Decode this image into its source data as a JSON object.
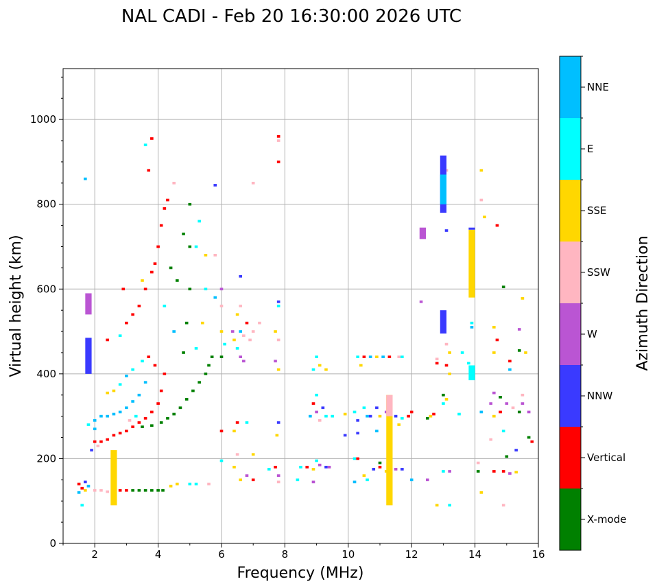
{
  "chart_data": {
    "type": "scatter",
    "title": "NAL CADI - Feb 20 16:30:00 2026 UTC",
    "xlabel": "Frequency (MHz)",
    "ylabel": "Virtual height (km)",
    "xlim": [
      1,
      16
    ],
    "ylim": [
      0,
      1120
    ],
    "xticks": [
      2,
      4,
      6,
      8,
      10,
      12,
      14,
      16
    ],
    "yticks": [
      0,
      200,
      400,
      600,
      800,
      1000
    ],
    "grid": true,
    "colorbar": {
      "label": "Azimuth Direction",
      "categories": [
        "X-mode",
        "Vertical",
        "NNW",
        "W",
        "SSW",
        "SSE",
        "E",
        "NNE"
      ],
      "colors": [
        "#008000",
        "#ff0000",
        "#3a3aff",
        "#ba55d3",
        "#ffb6c1",
        "#ffd700",
        "#00ffff",
        "#00bfff"
      ]
    },
    "points_columns": [
      "frequency_mhz",
      "height_km",
      "direction_index"
    ],
    "points": [
      [
        1.5,
        140,
        1
      ],
      [
        1.6,
        130,
        1
      ],
      [
        1.7,
        125,
        5
      ],
      [
        1.8,
        135,
        7
      ],
      [
        2.0,
        125,
        4
      ],
      [
        2.2,
        125,
        4
      ],
      [
        2.4,
        122,
        4
      ],
      [
        2.6,
        128,
        4
      ],
      [
        2.8,
        125,
        1
      ],
      [
        3.0,
        125,
        1
      ],
      [
        3.2,
        125,
        0
      ],
      [
        3.4,
        125,
        0
      ],
      [
        3.6,
        125,
        0
      ],
      [
        3.8,
        125,
        0
      ],
      [
        4.0,
        125,
        0
      ],
      [
        4.15,
        125,
        0
      ],
      [
        4.4,
        135,
        5
      ],
      [
        4.6,
        140,
        5
      ],
      [
        5.0,
        140,
        6
      ],
      [
        5.2,
        140,
        6
      ],
      [
        5.6,
        140,
        4
      ],
      [
        1.6,
        90,
        6
      ],
      [
        1.5,
        120,
        7
      ],
      [
        1.7,
        145,
        2
      ],
      [
        2.0,
        240,
        1
      ],
      [
        2.2,
        240,
        1
      ],
      [
        2.4,
        245,
        1
      ],
      [
        2.6,
        255,
        1
      ],
      [
        2.8,
        260,
        1
      ],
      [
        3.0,
        265,
        1
      ],
      [
        3.2,
        275,
        1
      ],
      [
        3.4,
        285,
        1
      ],
      [
        3.6,
        295,
        1
      ],
      [
        3.8,
        310,
        1
      ],
      [
        4.0,
        330,
        1
      ],
      [
        4.1,
        360,
        1
      ],
      [
        4.2,
        400,
        1
      ],
      [
        3.9,
        420,
        1
      ],
      [
        3.7,
        440,
        1
      ],
      [
        1.9,
        220,
        2
      ],
      [
        2.1,
        230,
        4
      ],
      [
        2.0,
        290,
        7
      ],
      [
        2.2,
        300,
        7
      ],
      [
        2.4,
        300,
        7
      ],
      [
        2.6,
        305,
        7
      ],
      [
        2.8,
        310,
        7
      ],
      [
        3.0,
        320,
        7
      ],
      [
        3.2,
        335,
        7
      ],
      [
        3.4,
        350,
        7
      ],
      [
        3.6,
        380,
        7
      ],
      [
        2.6,
        360,
        5
      ],
      [
        2.4,
        355,
        5
      ],
      [
        2.8,
        375,
        6
      ],
      [
        3.0,
        395,
        7
      ],
      [
        3.2,
        410,
        6
      ],
      [
        3.5,
        430,
        6
      ],
      [
        1.8,
        280,
        6
      ],
      [
        2.0,
        270,
        7
      ],
      [
        3.3,
        300,
        6
      ],
      [
        3.1,
        290,
        4
      ],
      [
        3.5,
        275,
        0
      ],
      [
        3.8,
        278,
        0
      ],
      [
        4.1,
        285,
        0
      ],
      [
        4.3,
        295,
        0
      ],
      [
        4.5,
        305,
        0
      ],
      [
        4.7,
        320,
        0
      ],
      [
        4.9,
        340,
        0
      ],
      [
        5.1,
        360,
        0
      ],
      [
        5.3,
        380,
        0
      ],
      [
        5.5,
        400,
        0
      ],
      [
        5.6,
        420,
        0
      ],
      [
        5.7,
        440,
        0
      ],
      [
        4.8,
        450,
        0
      ],
      [
        4.9,
        520,
        0
      ],
      [
        5.0,
        600,
        0
      ],
      [
        5.0,
        700,
        0
      ],
      [
        4.6,
        620,
        0
      ],
      [
        4.4,
        650,
        0
      ],
      [
        4.2,
        560,
        6
      ],
      [
        4.5,
        500,
        7
      ],
      [
        5.2,
        460,
        6
      ],
      [
        5.4,
        520,
        5
      ],
      [
        3.0,
        520,
        1
      ],
      [
        3.2,
        540,
        1
      ],
      [
        3.4,
        560,
        1
      ],
      [
        3.6,
        600,
        1
      ],
      [
        3.8,
        640,
        1
      ],
      [
        3.9,
        660,
        1
      ],
      [
        4.0,
        700,
        1
      ],
      [
        4.1,
        750,
        1
      ],
      [
        4.2,
        790,
        1
      ],
      [
        3.5,
        620,
        5
      ],
      [
        2.9,
        600,
        1
      ],
      [
        2.4,
        480,
        1
      ],
      [
        2.8,
        490,
        6
      ],
      [
        3.7,
        880,
        1
      ],
      [
        3.6,
        940,
        6
      ],
      [
        3.8,
        955,
        1
      ],
      [
        4.3,
        810,
        1
      ],
      [
        5.0,
        800,
        0
      ],
      [
        5.3,
        760,
        6
      ],
      [
        4.8,
        730,
        0
      ],
      [
        5.2,
        700,
        6
      ],
      [
        5.5,
        680,
        5
      ],
      [
        5.8,
        680,
        4
      ],
      [
        5.5,
        600,
        6
      ],
      [
        5.8,
        580,
        7
      ],
      [
        6.0,
        560,
        4
      ],
      [
        6.0,
        500,
        5
      ],
      [
        6.1,
        470,
        6
      ],
      [
        6.0,
        440,
        0
      ],
      [
        6.0,
        600,
        3
      ],
      [
        4.5,
        850,
        4
      ],
      [
        5.8,
        845,
        2
      ],
      [
        1.7,
        860,
        7
      ],
      [
        6.35,
        500,
        3
      ],
      [
        6.4,
        480,
        5
      ],
      [
        6.5,
        460,
        6
      ],
      [
        6.6,
        500,
        7
      ],
      [
        6.7,
        490,
        4
      ],
      [
        6.8,
        520,
        1
      ],
      [
        6.9,
        480,
        4
      ],
      [
        7.0,
        500,
        4
      ],
      [
        7.2,
        520,
        4
      ],
      [
        6.6,
        440,
        3
      ],
      [
        6.7,
        430,
        3
      ],
      [
        6.6,
        560,
        4
      ],
      [
        6.5,
        540,
        5
      ],
      [
        7.8,
        570,
        2
      ],
      [
        7.8,
        560,
        6
      ],
      [
        7.7,
        500,
        5
      ],
      [
        7.8,
        480,
        4
      ],
      [
        7.7,
        430,
        3
      ],
      [
        7.8,
        410,
        5
      ],
      [
        7.8,
        285,
        2
      ],
      [
        7.75,
        255,
        5
      ],
      [
        7.8,
        960,
        1
      ],
      [
        7.8,
        900,
        1
      ],
      [
        7.8,
        950,
        4
      ],
      [
        7.0,
        850,
        4
      ],
      [
        6.6,
        630,
        2
      ],
      [
        6.5,
        285,
        1
      ],
      [
        6.8,
        285,
        6
      ],
      [
        6.4,
        265,
        5
      ],
      [
        6.0,
        265,
        1
      ],
      [
        6.0,
        195,
        6
      ],
      [
        6.4,
        180,
        5
      ],
      [
        6.6,
        150,
        5
      ],
      [
        6.8,
        160,
        3
      ],
      [
        7.0,
        150,
        1
      ],
      [
        7.5,
        175,
        6
      ],
      [
        7.7,
        180,
        1
      ],
      [
        7.8,
        160,
        3
      ],
      [
        7.8,
        145,
        4
      ],
      [
        6.5,
        210,
        4
      ],
      [
        7.0,
        210,
        5
      ],
      [
        8.9,
        410,
        6
      ],
      [
        9.0,
        440,
        6
      ],
      [
        9.1,
        420,
        5
      ],
      [
        9.3,
        410,
        5
      ],
      [
        8.9,
        330,
        1
      ],
      [
        9.0,
        310,
        3
      ],
      [
        9.1,
        290,
        4
      ],
      [
        9.3,
        300,
        6
      ],
      [
        9.5,
        300,
        6
      ],
      [
        9.0,
        350,
        6
      ],
      [
        8.8,
        300,
        7
      ],
      [
        9.2,
        320,
        2
      ],
      [
        8.5,
        180,
        6
      ],
      [
        8.7,
        180,
        1
      ],
      [
        8.9,
        175,
        5
      ],
      [
        9.1,
        185,
        3
      ],
      [
        9.3,
        180,
        2
      ],
      [
        9.4,
        180,
        3
      ],
      [
        9.0,
        195,
        6
      ],
      [
        8.9,
        145,
        3
      ],
      [
        8.4,
        150,
        6
      ],
      [
        9.9,
        305,
        5
      ],
      [
        9.9,
        255,
        2
      ],
      [
        10.3,
        440,
        6
      ],
      [
        10.5,
        440,
        1
      ],
      [
        10.7,
        440,
        7
      ],
      [
        10.9,
        440,
        5
      ],
      [
        11.1,
        440,
        7
      ],
      [
        11.3,
        440,
        1
      ],
      [
        11.6,
        440,
        4
      ],
      [
        11.7,
        440,
        6
      ],
      [
        10.4,
        420,
        5
      ],
      [
        10.6,
        300,
        7
      ],
      [
        10.2,
        310,
        6
      ],
      [
        10.3,
        290,
        2
      ],
      [
        10.5,
        320,
        6
      ],
      [
        10.7,
        300,
        2
      ],
      [
        10.9,
        320,
        2
      ],
      [
        11.0,
        300,
        5
      ],
      [
        11.2,
        310,
        3
      ],
      [
        11.5,
        300,
        2
      ],
      [
        11.7,
        295,
        6
      ],
      [
        11.9,
        300,
        1
      ],
      [
        10.3,
        260,
        2
      ],
      [
        10.9,
        265,
        7
      ],
      [
        11.6,
        280,
        5
      ],
      [
        12.0,
        310,
        1
      ],
      [
        10.2,
        145,
        7
      ],
      [
        10.6,
        150,
        6
      ],
      [
        10.8,
        175,
        2
      ],
      [
        11.0,
        180,
        1
      ],
      [
        11.2,
        170,
        5
      ],
      [
        11.5,
        175,
        3
      ],
      [
        11.7,
        175,
        2
      ],
      [
        12.0,
        150,
        7
      ],
      [
        10.5,
        160,
        5
      ],
      [
        10.2,
        200,
        6
      ],
      [
        11.0,
        190,
        0
      ],
      [
        10.3,
        200,
        1
      ],
      [
        12.6,
        300,
        5
      ],
      [
        12.7,
        305,
        1
      ],
      [
        12.5,
        295,
        0
      ],
      [
        12.5,
        150,
        3
      ],
      [
        12.3,
        570,
        3
      ],
      [
        12.8,
        90,
        5
      ],
      [
        13.0,
        330,
        6
      ],
      [
        13.0,
        350,
        0
      ],
      [
        13.1,
        340,
        5
      ],
      [
        13.2,
        450,
        5
      ],
      [
        13.1,
        420,
        1
      ],
      [
        13.2,
        400,
        5
      ],
      [
        13.1,
        470,
        4
      ],
      [
        13.0,
        170,
        6
      ],
      [
        13.2,
        170,
        3
      ],
      [
        13.2,
        90,
        6
      ],
      [
        13.6,
        450,
        6
      ],
      [
        13.5,
        305,
        6
      ],
      [
        13.8,
        425,
        6
      ],
      [
        14.2,
        310,
        7
      ],
      [
        14.1,
        190,
        4
      ],
      [
        14.1,
        170,
        0
      ],
      [
        14.2,
        120,
        5
      ],
      [
        12.8,
        425,
        1
      ],
      [
        12.8,
        435,
        4
      ],
      [
        14.6,
        355,
        3
      ],
      [
        14.5,
        330,
        3
      ],
      [
        14.8,
        345,
        0
      ],
      [
        14.6,
        300,
        5
      ],
      [
        14.8,
        310,
        1
      ],
      [
        15.0,
        330,
        3
      ],
      [
        15.2,
        320,
        4
      ],
      [
        15.4,
        310,
        0
      ],
      [
        15.5,
        330,
        3
      ],
      [
        15.7,
        310,
        3
      ],
      [
        15.5,
        350,
        4
      ],
      [
        15.4,
        455,
        0
      ],
      [
        15.6,
        450,
        5
      ],
      [
        14.6,
        450,
        5
      ],
      [
        14.7,
        480,
        1
      ],
      [
        14.6,
        510,
        5
      ],
      [
        14.9,
        605,
        0
      ],
      [
        15.4,
        505,
        3
      ],
      [
        15.5,
        578,
        5
      ],
      [
        14.7,
        750,
        1
      ],
      [
        14.3,
        770,
        5
      ],
      [
        14.2,
        880,
        5
      ],
      [
        14.2,
        810,
        4
      ],
      [
        13.1,
        880,
        4
      ],
      [
        13.1,
        738,
        2
      ],
      [
        15.0,
        205,
        0
      ],
      [
        15.3,
        220,
        2
      ],
      [
        15.7,
        250,
        0
      ],
      [
        15.8,
        240,
        1
      ],
      [
        14.6,
        170,
        1
      ],
      [
        14.9,
        170,
        1
      ],
      [
        15.1,
        165,
        3
      ],
      [
        15.3,
        168,
        5
      ],
      [
        14.5,
        245,
        4
      ],
      [
        14.9,
        90,
        4
      ],
      [
        14.9,
        265,
        6
      ],
      [
        15.1,
        430,
        1
      ],
      [
        15.1,
        410,
        7
      ],
      [
        13.0,
        505,
        1
      ],
      [
        13.9,
        520,
        6
      ],
      [
        13.9,
        510,
        7
      ]
    ],
    "segments_columns": [
      "frequency_mhz",
      "height_start_km",
      "height_end_km",
      "direction_index"
    ],
    "segments": [
      [
        13.0,
        780,
        915,
        2
      ],
      [
        13.0,
        800,
        870,
        7
      ],
      [
        12.35,
        718,
        745,
        3
      ],
      [
        13.0,
        495,
        550,
        2
      ],
      [
        13.9,
        580,
        740,
        5
      ],
      [
        13.9,
        385,
        420,
        6
      ],
      [
        13.9,
        740,
        745,
        2
      ],
      [
        2.6,
        90,
        220,
        5
      ],
      [
        1.8,
        540,
        590,
        3
      ],
      [
        1.8,
        400,
        485,
        2
      ],
      [
        11.3,
        90,
        350,
        5
      ],
      [
        11.3,
        300,
        350,
        4
      ]
    ]
  }
}
